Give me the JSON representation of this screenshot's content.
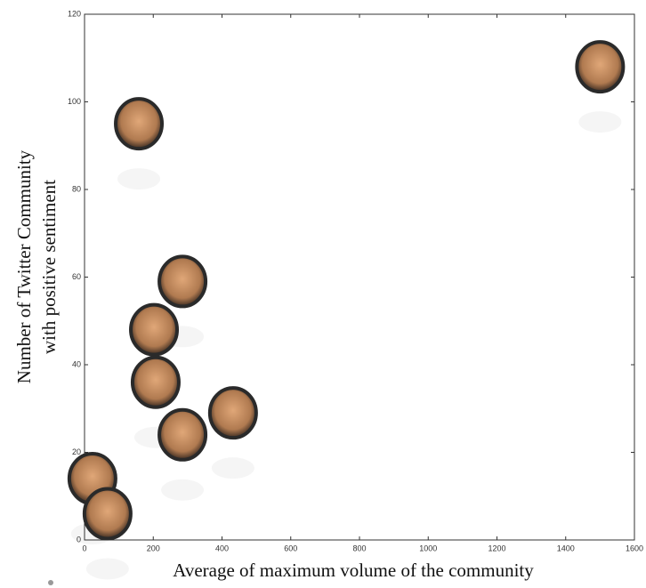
{
  "chart_data": {
    "type": "scatter",
    "xlabel": "Average of maximum volume of the community",
    "ylabel": [
      "Number of Twitter Community",
      "with positive sentiment"
    ],
    "x": [
      1500,
      158,
      285,
      202,
      207,
      432,
      285,
      23,
      67
    ],
    "values": [
      108,
      95,
      59,
      48,
      36,
      29,
      24,
      14,
      6
    ],
    "xlim": [
      0,
      1600
    ],
    "xticks": [
      0,
      200,
      400,
      600,
      800,
      1000,
      1200,
      1400,
      1600
    ],
    "ylim": [
      0,
      120
    ],
    "yticks": [
      0,
      20,
      40,
      60,
      80,
      100,
      120
    ]
  }
}
